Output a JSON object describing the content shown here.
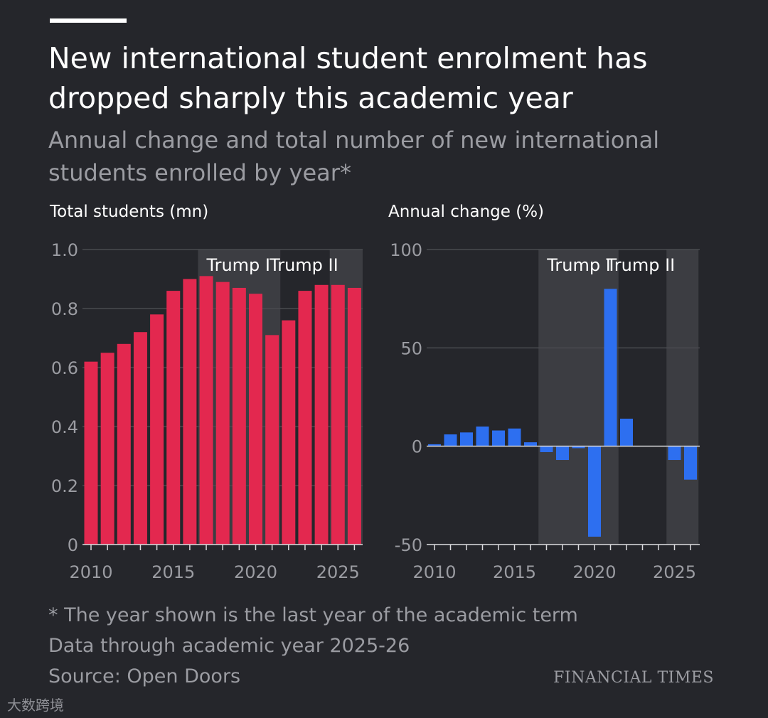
{
  "header": {
    "title": "New international student enrolment has dropped sharply this academic year",
    "subtitle": "Annual change and total number of new international students enrolled by year*"
  },
  "colors": {
    "background": "#25262b",
    "total_bar": "#e3284f",
    "change_bar": "#2d6ff0",
    "shade": "#3c3d42",
    "grid": "#4a4b50",
    "muted_text": "#9b9ca2"
  },
  "chart_data": [
    {
      "type": "bar",
      "title": "Total students (mn)",
      "xlabel": "",
      "ylabel": "Total students (mn)",
      "x": [
        2010,
        2011,
        2012,
        2013,
        2014,
        2015,
        2016,
        2017,
        2018,
        2019,
        2020,
        2021,
        2022,
        2023,
        2024,
        2025,
        2026
      ],
      "values": [
        0.62,
        0.65,
        0.68,
        0.72,
        0.78,
        0.86,
        0.9,
        0.91,
        0.89,
        0.87,
        0.85,
        0.71,
        0.76,
        0.86,
        0.88,
        0.88,
        0.87
      ],
      "ylim": [
        0,
        1.0
      ],
      "yticks": [
        0,
        0.2,
        0.4,
        0.6,
        0.8,
        1.0
      ],
      "ytick_labels": [
        "0",
        "0.2",
        "0.4",
        "0.6",
        "0.8",
        "1.0"
      ],
      "xticks": [
        2010,
        2015,
        2020,
        2025
      ],
      "xtick_labels": [
        "2010",
        "2015",
        "2020",
        "2025"
      ],
      "shaded_periods": [
        {
          "label": "Trump I",
          "start": 2017,
          "end": 2021
        },
        {
          "label": "Trump II",
          "start": 2025,
          "end": 2026
        }
      ]
    },
    {
      "type": "bar",
      "title": "Annual change (%)",
      "xlabel": "",
      "ylabel": "Annual change (%)",
      "x": [
        2010,
        2011,
        2012,
        2013,
        2014,
        2015,
        2016,
        2017,
        2018,
        2019,
        2020,
        2021,
        2022,
        2023,
        2024,
        2025,
        2026
      ],
      "values": [
        1,
        6,
        7,
        10,
        8,
        9,
        2,
        -3,
        -7,
        -1,
        -46,
        80,
        14,
        0,
        0,
        -7,
        -17
      ],
      "ylim": [
        -50,
        100
      ],
      "yticks": [
        -50,
        0,
        50,
        100
      ],
      "ytick_labels": [
        "-50",
        "0",
        "50",
        "100"
      ],
      "xticks": [
        2010,
        2015,
        2020,
        2025
      ],
      "xtick_labels": [
        "2010",
        "2015",
        "2020",
        "2025"
      ],
      "shaded_periods": [
        {
          "label": "Trump I",
          "start": 2017,
          "end": 2021
        },
        {
          "label": "Trump II",
          "start": 2025,
          "end": 2026
        }
      ]
    }
  ],
  "footer": {
    "note": "* The year shown is the last year of the academic term",
    "data_through": "Data through academic year 2025-26",
    "source": "Source: Open Doors",
    "brand": "FINANCIAL TIMES"
  },
  "watermark": {
    "text": "大数跨境"
  }
}
